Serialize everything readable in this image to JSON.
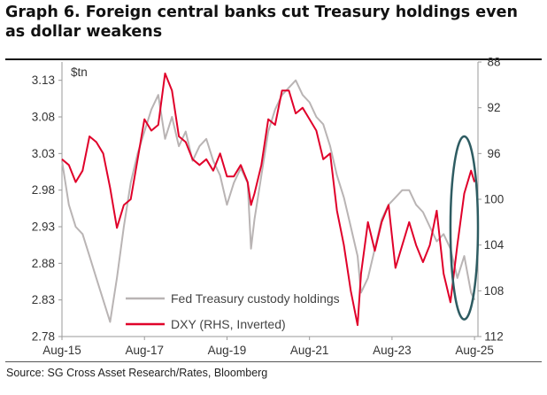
{
  "title": "Graph 6. Foreign central banks cut Treasury holdings even as dollar weakens",
  "source": "Source: SG Cross Asset Research/Rates, Bloomberg",
  "chart_data": {
    "type": "line",
    "unit_label": "$tn",
    "left_axis": {
      "ticks": [
        "3.13",
        "3.08",
        "3.03",
        "2.98",
        "2.93",
        "2.88",
        "2.83",
        "2.78"
      ],
      "ylim": [
        2.78,
        3.155
      ]
    },
    "right_axis": {
      "ticks": [
        "88",
        "92",
        "96",
        "100",
        "104",
        "108",
        "112"
      ],
      "inverted": true,
      "ylim": [
        88,
        112
      ]
    },
    "x_ticks": [
      "Aug-15",
      "Aug-17",
      "Aug-19",
      "Aug-21",
      "Aug-23",
      "Aug-25"
    ],
    "xlim": [
      "2015-08",
      "2025-09"
    ],
    "series": [
      {
        "name": "Fed Treasury custody holdings",
        "axis": "left",
        "color": "#b9b4b4",
        "x": [
          "2015-08",
          "2015-10",
          "2015-12",
          "2016-02",
          "2016-04",
          "2016-06",
          "2016-08",
          "2016-10",
          "2016-12",
          "2017-02",
          "2017-04",
          "2017-06",
          "2017-08",
          "2017-10",
          "2017-12",
          "2018-02",
          "2018-04",
          "2018-06",
          "2018-08",
          "2018-10",
          "2018-12",
          "2019-02",
          "2019-04",
          "2019-06",
          "2019-08",
          "2019-10",
          "2019-12",
          "2020-02",
          "2020-03",
          "2020-04",
          "2020-06",
          "2020-08",
          "2020-10",
          "2020-12",
          "2021-02",
          "2021-04",
          "2021-06",
          "2021-08",
          "2021-10",
          "2021-12",
          "2022-02",
          "2022-04",
          "2022-06",
          "2022-08",
          "2022-10",
          "2022-11",
          "2023-01",
          "2023-03",
          "2023-05",
          "2023-07",
          "2023-09",
          "2023-11",
          "2024-01",
          "2024-03",
          "2024-05",
          "2024-07",
          "2024-09",
          "2024-11",
          "2025-01",
          "2025-03",
          "2025-05",
          "2025-07",
          "2025-08"
        ],
        "values": [
          3.02,
          2.96,
          2.93,
          2.92,
          2.89,
          2.86,
          2.83,
          2.8,
          2.86,
          2.93,
          2.99,
          3.03,
          3.06,
          3.09,
          3.11,
          3.05,
          3.08,
          3.04,
          3.06,
          3.02,
          3.04,
          3.05,
          3.02,
          3.0,
          2.96,
          2.99,
          3.01,
          2.99,
          2.9,
          2.94,
          3.0,
          3.06,
          3.09,
          3.11,
          3.12,
          3.13,
          3.11,
          3.1,
          3.08,
          3.07,
          3.04,
          3.0,
          2.97,
          2.93,
          2.89,
          2.84,
          2.86,
          2.9,
          2.94,
          2.96,
          2.97,
          2.98,
          2.98,
          2.96,
          2.95,
          2.93,
          2.91,
          2.92,
          2.9,
          2.86,
          2.89,
          2.84,
          2.83
        ]
      },
      {
        "name": "DXY (RHS, Inverted)",
        "axis": "right",
        "color": "#e0002a",
        "x": [
          "2015-08",
          "2015-10",
          "2015-12",
          "2016-02",
          "2016-04",
          "2016-06",
          "2016-08",
          "2016-10",
          "2016-12",
          "2017-02",
          "2017-04",
          "2017-06",
          "2017-08",
          "2017-10",
          "2017-12",
          "2018-02",
          "2018-04",
          "2018-06",
          "2018-08",
          "2018-10",
          "2018-12",
          "2019-02",
          "2019-04",
          "2019-06",
          "2019-08",
          "2019-10",
          "2019-12",
          "2020-02",
          "2020-03",
          "2020-04",
          "2020-06",
          "2020-08",
          "2020-10",
          "2020-12",
          "2021-02",
          "2021-04",
          "2021-06",
          "2021-08",
          "2021-10",
          "2021-12",
          "2022-02",
          "2022-04",
          "2022-06",
          "2022-08",
          "2022-10",
          "2022-11",
          "2023-01",
          "2023-03",
          "2023-05",
          "2023-07",
          "2023-09",
          "2023-11",
          "2024-01",
          "2024-03",
          "2024-05",
          "2024-07",
          "2024-09",
          "2024-11",
          "2025-01",
          "2025-03",
          "2025-05",
          "2025-07",
          "2025-08"
        ],
        "values": [
          96.5,
          97.0,
          98.5,
          97.5,
          94.5,
          95.0,
          96.0,
          99.0,
          102.5,
          100.5,
          100.0,
          96.5,
          93.0,
          94.0,
          93.5,
          89.0,
          90.5,
          94.5,
          95.0,
          96.5,
          97.0,
          96.5,
          97.5,
          96.0,
          98.0,
          98.0,
          97.0,
          98.5,
          100.5,
          99.5,
          97.0,
          93.0,
          93.5,
          90.5,
          90.5,
          92.5,
          92.0,
          93.0,
          94.0,
          96.5,
          96.0,
          101.0,
          104.0,
          108.0,
          111.0,
          106.5,
          102.0,
          104.5,
          102.0,
          100.5,
          106.0,
          104.0,
          102.0,
          104.0,
          105.5,
          104.0,
          101.0,
          106.5,
          109.0,
          104.0,
          99.5,
          97.5,
          98.5
        ]
      }
    ],
    "annotations": [
      {
        "type": "ellipse",
        "color": "#2e5c62",
        "around": {
          "x_from": "2025-01",
          "x_to": "2025-09",
          "y_from_right": 94.5,
          "y_to_right": 110.5
        }
      }
    ],
    "legend": "bottom-left, inside plot",
    "grid": false
  }
}
